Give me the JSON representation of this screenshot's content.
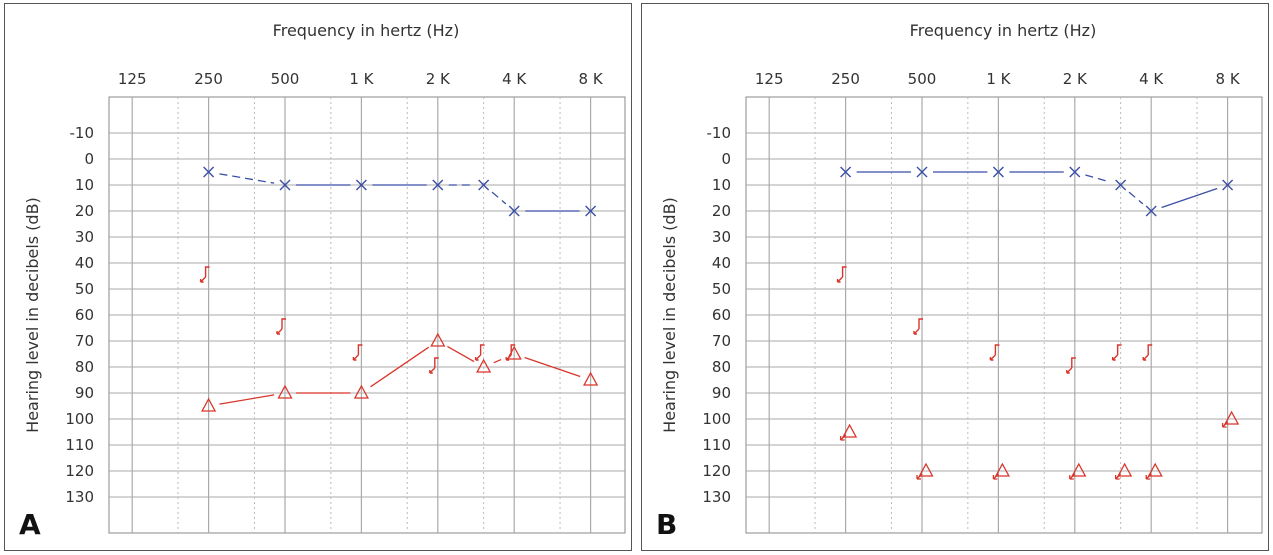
{
  "chart_data": [
    {
      "type": "line",
      "panel_label": "A",
      "title": "Frequency in hertz (Hz)",
      "ylabel": "Hearing level in decibels (dB)",
      "x_tick_labels": [
        "125",
        "250",
        "500",
        "1 K",
        "2 K",
        "4 K",
        "8 K"
      ],
      "y_tick_labels": [
        "-10",
        "0",
        "10",
        "20",
        "30",
        "40",
        "50",
        "60",
        "70",
        "80",
        "90",
        "100",
        "110",
        "120",
        "130"
      ],
      "ylim": [
        -10,
        130
      ],
      "y_inverted": true,
      "grid": true,
      "series": [
        {
          "marker": "x",
          "color": "#3a4fa6",
          "points": [
            [
              250,
              5
            ],
            [
              500,
              10
            ],
            [
              1000,
              10
            ],
            [
              2000,
              10
            ],
            [
              3000,
              10
            ],
            [
              4000,
              20
            ],
            [
              8000,
              20
            ]
          ],
          "segments": [
            {
              "from": 0,
              "to": 1,
              "style": "dashed"
            },
            {
              "from": 1,
              "to": 2,
              "style": "solid"
            },
            {
              "from": 2,
              "to": 3,
              "style": "solid"
            },
            {
              "from": 3,
              "to": 4,
              "style": "dashed"
            },
            {
              "from": 4,
              "to": 5,
              "style": "dashed"
            },
            {
              "from": 5,
              "to": 6,
              "style": "solid"
            }
          ]
        },
        {
          "marker": "triangle",
          "color": "#d9352b",
          "points": [
            [
              250,
              95
            ],
            [
              500,
              90
            ],
            [
              1000,
              90
            ],
            [
              2000,
              70
            ],
            [
              3000,
              80
            ],
            [
              4000,
              75
            ],
            [
              8000,
              85
            ]
          ],
          "segments": [
            {
              "from": 0,
              "to": 1,
              "style": "solid"
            },
            {
              "from": 1,
              "to": 2,
              "style": "solid"
            },
            {
              "from": 2,
              "to": 3,
              "style": "solid"
            },
            {
              "from": 3,
              "to": 4,
              "style": "solid"
            },
            {
              "from": 4,
              "to": 5,
              "style": "dashed"
            },
            {
              "from": 5,
              "to": 6,
              "style": "solid"
            }
          ]
        },
        {
          "marker": "bracket",
          "color": "#d9352b",
          "points": [
            [
              250,
              45
            ],
            [
              500,
              65
            ],
            [
              1000,
              75
            ],
            [
              2000,
              80
            ],
            [
              3000,
              75
            ],
            [
              4000,
              75
            ]
          ]
        }
      ]
    },
    {
      "type": "line",
      "panel_label": "B",
      "title": "Frequency in hertz (Hz)",
      "ylabel": "Hearing level in decibels (dB)",
      "x_tick_labels": [
        "125",
        "250",
        "500",
        "1 K",
        "2 K",
        "4 K",
        "8 K"
      ],
      "y_tick_labels": [
        "-10",
        "0",
        "10",
        "20",
        "30",
        "40",
        "50",
        "60",
        "70",
        "80",
        "90",
        "100",
        "110",
        "120",
        "130"
      ],
      "ylim": [
        -10,
        130
      ],
      "y_inverted": true,
      "grid": true,
      "series": [
        {
          "marker": "x",
          "color": "#3a4fa6",
          "points": [
            [
              250,
              5
            ],
            [
              500,
              5
            ],
            [
              1000,
              5
            ],
            [
              2000,
              5
            ],
            [
              3000,
              10
            ],
            [
              4000,
              20
            ],
            [
              8000,
              10
            ]
          ],
          "segments": [
            {
              "from": 0,
              "to": 1,
              "style": "solid"
            },
            {
              "from": 1,
              "to": 2,
              "style": "solid"
            },
            {
              "from": 2,
              "to": 3,
              "style": "solid"
            },
            {
              "from": 3,
              "to": 4,
              "style": "dashed"
            },
            {
              "from": 4,
              "to": 5,
              "style": "dashed"
            },
            {
              "from": 5,
              "to": 6,
              "style": "solid"
            }
          ]
        },
        {
          "marker": "triangle-noresponse",
          "color": "#d9352b",
          "points": [
            [
              250,
              105
            ],
            [
              500,
              120
            ],
            [
              1000,
              120
            ],
            [
              2000,
              120
            ],
            [
              3000,
              120
            ],
            [
              4000,
              120
            ],
            [
              8000,
              100
            ]
          ]
        },
        {
          "marker": "bracket",
          "color": "#d9352b",
          "points": [
            [
              250,
              45
            ],
            [
              500,
              65
            ],
            [
              1000,
              75
            ],
            [
              2000,
              80
            ],
            [
              3000,
              75
            ],
            [
              4000,
              75
            ]
          ]
        }
      ]
    }
  ]
}
